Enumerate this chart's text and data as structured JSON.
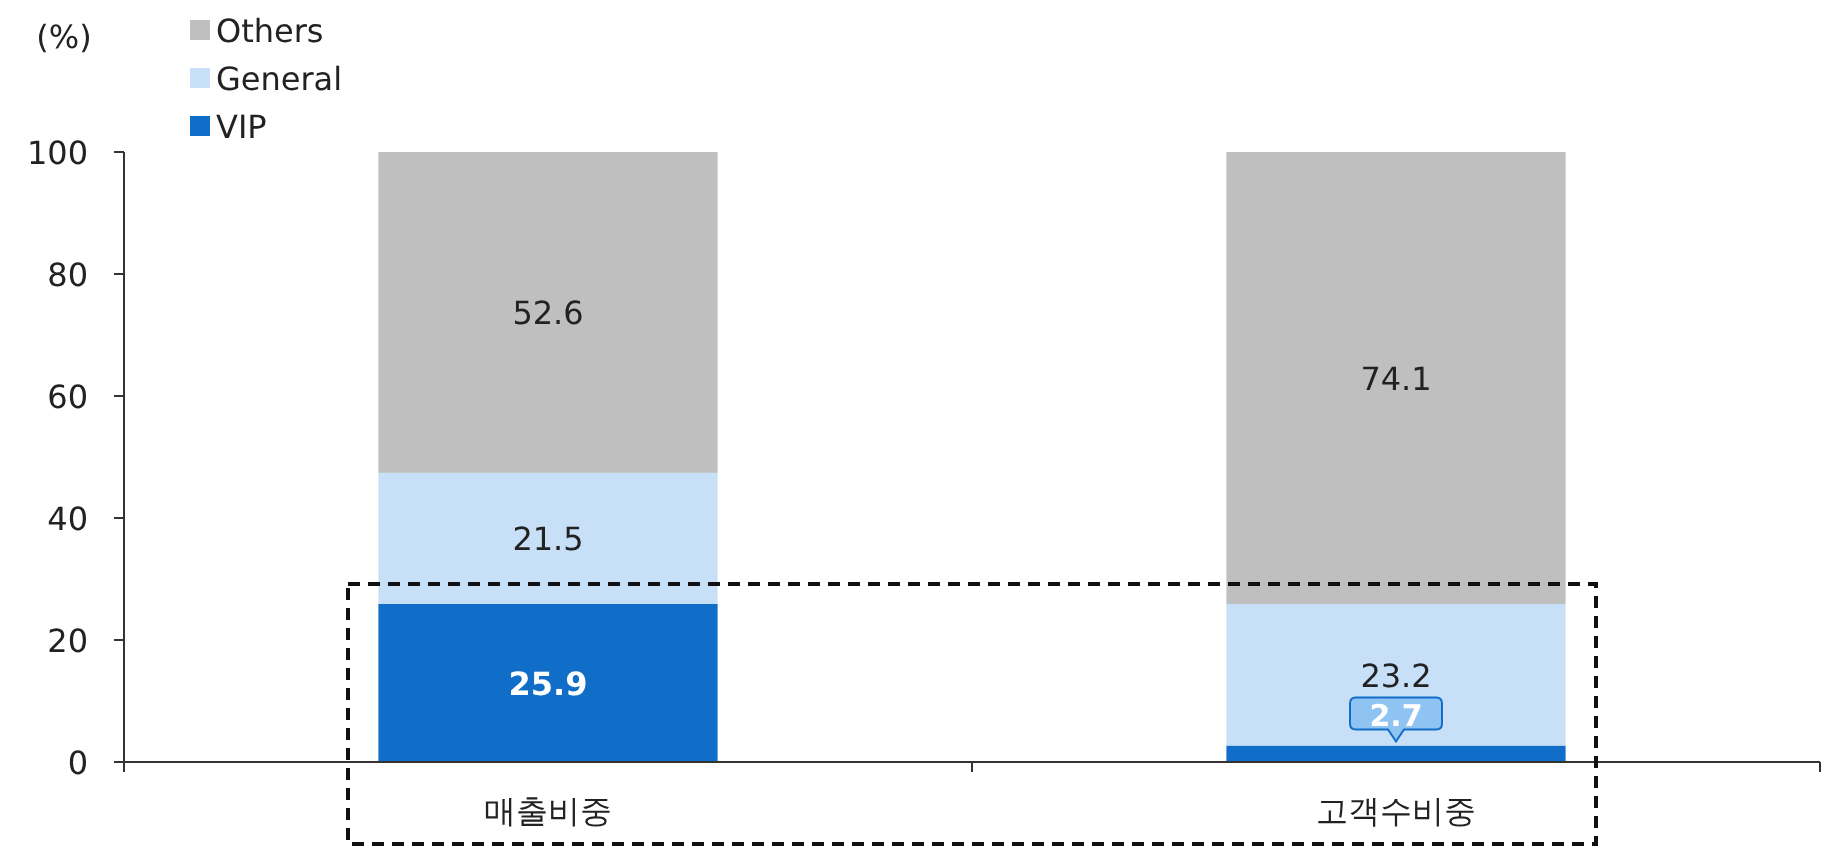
{
  "chart_data": {
    "type": "bar",
    "stacked": true,
    "ylabel": "(%)",
    "categories": [
      "매출비중",
      "고객수비중"
    ],
    "series": [
      {
        "name": "VIP",
        "color": "#106ec8",
        "values": [
          25.9,
          2.7
        ]
      },
      {
        "name": "General",
        "color": "#c7e0f8",
        "values": [
          21.5,
          23.2
        ]
      },
      {
        "name": "Others",
        "color": "#bfbfbf",
        "values": [
          52.6,
          74.1
        ]
      }
    ],
    "ylim": [
      0,
      100
    ],
    "yticks": [
      0,
      20,
      40,
      60,
      80,
      100
    ],
    "data_labels": true,
    "legend": "top left",
    "grid": false
  }
}
